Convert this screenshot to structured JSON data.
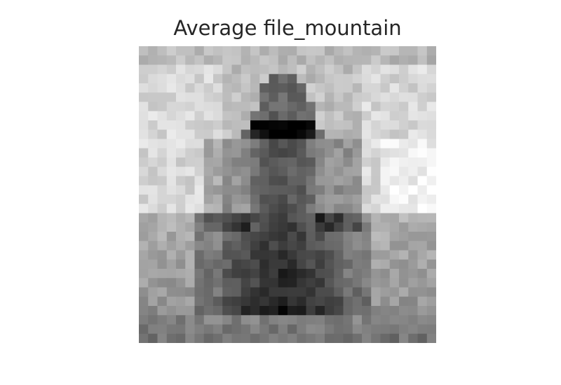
{
  "title": "Average file_mountain",
  "image": {
    "description_icon": "grayscale-average-image",
    "colormap": "gray"
  }
}
